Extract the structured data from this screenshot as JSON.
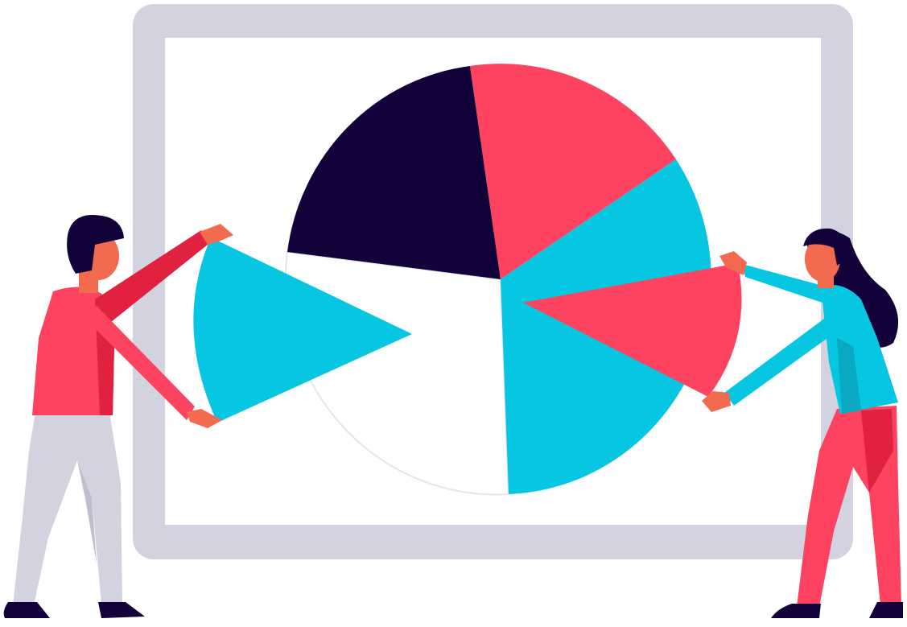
{
  "colors": {
    "frame": "#D3D2E0",
    "board": "#FFFFFF",
    "navy": "#13013A",
    "red": "#FD4360",
    "cyan": "#06C6E2",
    "skin": "#F26B4E",
    "hair": "#13013A",
    "pants_light": "#D3D2E0",
    "shadow": "#BFBECF",
    "man_shirt": "#FD4360",
    "man_shirt_dark": "#E0213F",
    "woman_top": "#06C6E2",
    "woman_top_dark": "#0AA8C3",
    "woman_pants": "#FD4360",
    "woman_pants_dark": "#E0213F",
    "shoes": "#13013A"
  },
  "icons": [
    "pie-chart-illustration",
    "man-figure",
    "woman-figure"
  ]
}
